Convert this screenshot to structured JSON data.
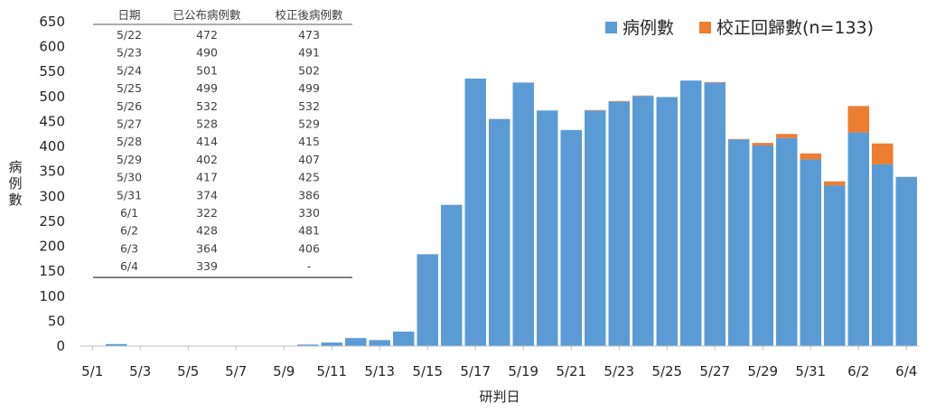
{
  "chart_data": {
    "type": "bar",
    "stacked": true,
    "xlabel": "研判日",
    "ylabel": "病例數",
    "ylim": [
      0,
      650
    ],
    "yticks": [
      0,
      50,
      100,
      150,
      200,
      250,
      300,
      350,
      400,
      450,
      500,
      550,
      600,
      650
    ],
    "grid": false,
    "legend_position": "top-right",
    "categories": [
      "5/1",
      "5/2",
      "5/3",
      "5/4",
      "5/5",
      "5/6",
      "5/7",
      "5/8",
      "5/9",
      "5/10",
      "5/11",
      "5/12",
      "5/13",
      "5/14",
      "5/15",
      "5/16",
      "5/17",
      "5/18",
      "5/19",
      "5/20",
      "5/21",
      "5/22",
      "5/23",
      "5/24",
      "5/25",
      "5/26",
      "5/27",
      "5/28",
      "5/29",
      "5/30",
      "5/31",
      "6/1",
      "6/2",
      "6/3",
      "6/4"
    ],
    "x_tick_labels": [
      "5/1",
      "5/3",
      "5/5",
      "5/7",
      "5/9",
      "5/11",
      "5/13",
      "5/15",
      "5/17",
      "5/19",
      "5/21",
      "5/23",
      "5/25",
      "5/27",
      "5/29",
      "5/31",
      "6/2",
      "6/4"
    ],
    "series": [
      {
        "name": "病例數",
        "color": "#5B9BD5",
        "values": [
          0,
          4,
          0,
          0,
          0,
          0,
          0,
          0,
          0,
          3,
          7,
          16,
          12,
          29,
          184,
          283,
          536,
          455,
          528,
          472,
          433,
          472,
          490,
          501,
          499,
          532,
          528,
          414,
          402,
          417,
          374,
          322,
          428,
          364,
          339
        ]
      },
      {
        "name": "校正回歸數(n=133)",
        "color": "#ED7D31",
        "values": [
          0,
          0,
          0,
          0,
          0,
          0,
          0,
          0,
          0,
          0,
          0,
          0,
          0,
          0,
          0,
          0,
          0,
          0,
          0,
          0,
          0,
          1,
          1,
          1,
          0,
          0,
          1,
          1,
          5,
          8,
          12,
          8,
          53,
          42,
          0
        ]
      }
    ],
    "table": {
      "headers": [
        "日期",
        "已公布病例數",
        "校正後病例數"
      ],
      "rows": [
        [
          "5/22",
          "472",
          "473"
        ],
        [
          "5/23",
          "490",
          "491"
        ],
        [
          "5/24",
          "501",
          "502"
        ],
        [
          "5/25",
          "499",
          "499"
        ],
        [
          "5/26",
          "532",
          "532"
        ],
        [
          "5/27",
          "528",
          "529"
        ],
        [
          "5/28",
          "414",
          "415"
        ],
        [
          "5/29",
          "402",
          "407"
        ],
        [
          "5/30",
          "417",
          "425"
        ],
        [
          "5/31",
          "374",
          "386"
        ],
        [
          "6/1",
          "322",
          "330"
        ],
        [
          "6/2",
          "428",
          "481"
        ],
        [
          "6/3",
          "364",
          "406"
        ],
        [
          "6/4",
          "339",
          "-"
        ]
      ]
    }
  }
}
